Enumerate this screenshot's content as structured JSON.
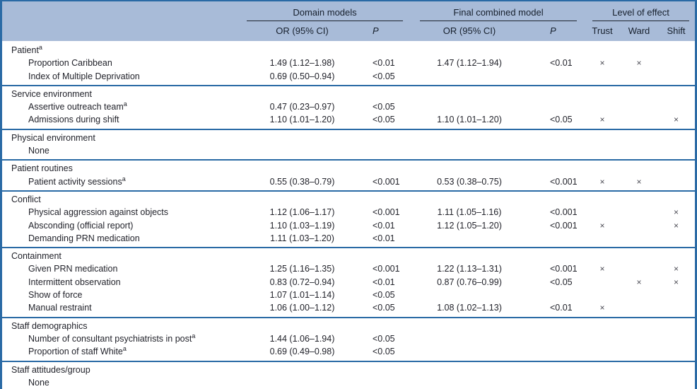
{
  "colors": {
    "rule_blue": "#2a6aa5",
    "header_band_blue": "#a8bbd8",
    "header_text": "#161f2c",
    "body_text": "#22232b",
    "mark_gray": "#4c4c55"
  },
  "table": {
    "mark_glyph": "×",
    "header": {
      "groups": {
        "domain": "Domain models",
        "final": "Final combined model",
        "level": "Level of effect"
      },
      "sub": {
        "or1": "OR (95% CI)",
        "p1": "P",
        "or2": "OR (95% CI)",
        "p2": "P",
        "trust": "Trust",
        "ward": "Ward",
        "shift": "Shift"
      }
    },
    "sections": [
      {
        "title": "Patient",
        "sup": "a",
        "rows": [
          {
            "label": "Proportion Caribbean",
            "dom_or": "1.49 (1.12–1.98)",
            "dom_p": "<0.01",
            "fin_or": "1.47 (1.12–1.94)",
            "fin_p": "<0.01",
            "trust": true,
            "ward": true,
            "shift": false
          },
          {
            "label": "Index of Multiple Deprivation",
            "dom_or": "0.69 (0.50–0.94)",
            "dom_p": "<0.05",
            "fin_or": "",
            "fin_p": "",
            "trust": false,
            "ward": false,
            "shift": false
          }
        ]
      },
      {
        "title": "Service environment",
        "rows": [
          {
            "label": "Assertive outreach team",
            "sup": "a",
            "dom_or": "0.47 (0.23–0.97)",
            "dom_p": "<0.05",
            "fin_or": "",
            "fin_p": "",
            "trust": false,
            "ward": false,
            "shift": false
          },
          {
            "label": "Admissions during shift",
            "dom_or": "1.10 (1.01–1.20)",
            "dom_p": "<0.05",
            "fin_or": "1.10 (1.01–1.20)",
            "fin_p": "<0.05",
            "trust": true,
            "ward": false,
            "shift": true
          }
        ]
      },
      {
        "title": "Physical environment",
        "rows": [
          {
            "label": "None",
            "dom_or": "",
            "dom_p": "",
            "fin_or": "",
            "fin_p": "",
            "trust": false,
            "ward": false,
            "shift": false
          }
        ]
      },
      {
        "title": "Patient routines",
        "rows": [
          {
            "label": "Patient activity sessions",
            "sup": "a",
            "dom_or": "0.55 (0.38–0.79)",
            "dom_p": "<0.001",
            "fin_or": "0.53 (0.38–0.75)",
            "fin_p": "<0.001",
            "trust": true,
            "ward": true,
            "shift": false
          }
        ]
      },
      {
        "title": "Conflict",
        "rows": [
          {
            "label": "Physical aggression against objects",
            "dom_or": "1.12 (1.06–1.17)",
            "dom_p": "<0.001",
            "fin_or": "1.11 (1.05–1.16)",
            "fin_p": "<0.001",
            "trust": false,
            "ward": false,
            "shift": true
          },
          {
            "label": "Absconding (official report)",
            "dom_or": "1.10 (1.03–1.19)",
            "dom_p": "<0.01",
            "fin_or": "1.12 (1.05–1.20)",
            "fin_p": "<0.001",
            "trust": true,
            "ward": false,
            "shift": true
          },
          {
            "label": "Demanding PRN medication",
            "dom_or": "1.11 (1.03–1.20)",
            "dom_p": "<0.01",
            "fin_or": "",
            "fin_p": "",
            "trust": false,
            "ward": false,
            "shift": false
          }
        ]
      },
      {
        "title": "Containment",
        "rows": [
          {
            "label": "Given PRN medication",
            "dom_or": "1.25 (1.16–1.35)",
            "dom_p": "<0.001",
            "fin_or": "1.22 (1.13–1.31)",
            "fin_p": "<0.001",
            "trust": true,
            "ward": false,
            "shift": true
          },
          {
            "label": "Intermittent observation",
            "dom_or": "0.83 (0.72–0.94)",
            "dom_p": "<0.01",
            "fin_or": "0.87 (0.76–0.99)",
            "fin_p": "<0.05",
            "trust": false,
            "ward": true,
            "shift": true
          },
          {
            "label": "Show of force",
            "dom_or": "1.07 (1.01–1.14)",
            "dom_p": "<0.05",
            "fin_or": "",
            "fin_p": "",
            "trust": false,
            "ward": false,
            "shift": false
          },
          {
            "label": "Manual restraint",
            "dom_or": "1.06 (1.00–1.12)",
            "dom_p": "<0.05",
            "fin_or": "1.08 (1.02–1.13)",
            "fin_p": "<0.01",
            "trust": true,
            "ward": false,
            "shift": false
          }
        ]
      },
      {
        "title": "Staff demographics",
        "rows": [
          {
            "label": "Number of consultant psychiatrists in post",
            "sup": "a",
            "dom_or": "1.44 (1.06–1.94)",
            "dom_p": "<0.05",
            "fin_or": "",
            "fin_p": "",
            "trust": false,
            "ward": false,
            "shift": false
          },
          {
            "label": "Proportion of staff White",
            "sup": "a",
            "dom_or": "0.69 (0.49–0.98)",
            "dom_p": "<0.05",
            "fin_or": "",
            "fin_p": "",
            "trust": false,
            "ward": false,
            "shift": false
          }
        ]
      },
      {
        "title": "Staff attitudes/group",
        "rows": [
          {
            "label": "None",
            "dom_or": "",
            "dom_p": "",
            "fin_or": "",
            "fin_p": "",
            "trust": false,
            "ward": false,
            "shift": false
          }
        ]
      }
    ]
  }
}
